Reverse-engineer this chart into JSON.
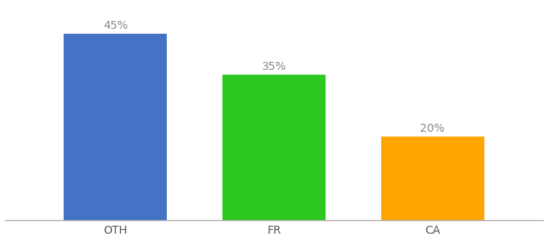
{
  "categories": [
    "OTH",
    "FR",
    "CA"
  ],
  "values": [
    45,
    35,
    20
  ],
  "labels": [
    "45%",
    "35%",
    "20%"
  ],
  "bar_colors": [
    "#4472C4",
    "#2DC820",
    "#FFA500"
  ],
  "ylim": [
    0,
    52
  ],
  "background_color": "#ffffff",
  "label_fontsize": 10,
  "tick_fontsize": 10,
  "bar_width": 0.65
}
